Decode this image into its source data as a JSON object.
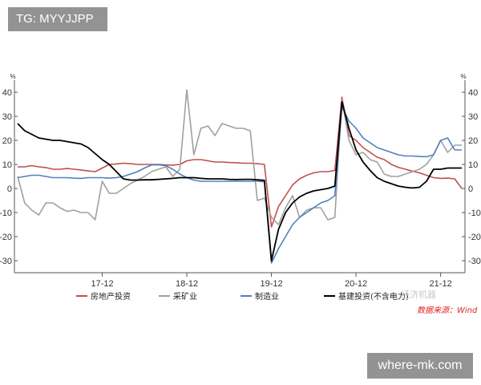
{
  "overlays": {
    "tg_label": "TG: MYYJJPP",
    "site_label": "where-mk.com",
    "brand_mark": "经济机器",
    "source_note": "数据来源：Wind"
  },
  "chart_data": {
    "type": "line",
    "title": "",
    "xlabel": "",
    "ylabel_left": "%",
    "ylabel_right": "%",
    "ylim": [
      -35,
      45
    ],
    "yticks": [
      40,
      30,
      20,
      10,
      0,
      -10,
      -20,
      -30
    ],
    "x_ticks": [
      {
        "label": "17-12",
        "index": 12
      },
      {
        "label": "18-12",
        "index": 24
      },
      {
        "label": "19-12",
        "index": 36
      },
      {
        "label": "20-12",
        "index": 48
      },
      {
        "label": "21-12",
        "index": 60
      }
    ],
    "x_count": 64,
    "grid": false,
    "legend_position": "bottom",
    "series": [
      {
        "name": "房地产投资",
        "color": "#c0504d",
        "values": [
          9,
          9,
          9.5,
          9,
          8.7,
          8,
          8,
          8.3,
          8,
          7.7,
          7.3,
          7,
          8.5,
          10,
          10.2,
          10.5,
          10.3,
          10,
          10,
          10,
          10,
          9.8,
          9.7,
          10,
          11.5,
          12,
          12,
          11.5,
          11,
          11,
          10.8,
          10.7,
          10.5,
          10.5,
          10.3,
          10,
          -16,
          -7.5,
          -3,
          1.5,
          4,
          5.5,
          6.5,
          7,
          7,
          7.5,
          38,
          22,
          20,
          17,
          15,
          13,
          12,
          10,
          8.8,
          8,
          7.2,
          6.5,
          5.5,
          4.5,
          4.2,
          4.3,
          4,
          0
        ]
      },
      {
        "name": "采矿业",
        "color": "#a0a0a0",
        "values": [
          5,
          -6,
          -9,
          -11,
          -6,
          -6,
          -8,
          -9.5,
          -9,
          -10,
          -10,
          -13,
          3,
          -2,
          -2,
          0,
          2,
          3.5,
          5,
          7,
          8,
          9,
          5,
          8,
          41,
          14,
          25,
          26,
          22,
          27,
          26,
          25,
          25,
          24,
          -5,
          -4,
          -12,
          -15,
          -8,
          -3,
          -12,
          -9,
          -8,
          -8,
          -13,
          -12,
          37,
          20,
          14,
          15,
          12,
          11,
          6,
          5,
          5,
          6,
          7,
          8,
          10,
          14,
          20,
          15,
          18,
          18
        ]
      },
      {
        "name": "制造业",
        "color": "#4f81bd",
        "values": [
          4.5,
          5,
          5.5,
          5.5,
          5,
          4.5,
          4.5,
          4.5,
          4.3,
          4.2,
          4.5,
          4.5,
          4.5,
          4.3,
          4.5,
          5,
          6,
          7,
          8.5,
          9.8,
          9.8,
          9.5,
          8,
          6,
          4.5,
          3.5,
          3,
          3,
          3,
          3,
          3,
          3,
          3,
          3,
          3,
          2.8,
          -31,
          -25,
          -20,
          -15,
          -12,
          -10,
          -8,
          -6,
          -5,
          -3,
          34,
          28,
          25,
          21,
          19,
          17,
          16,
          15,
          14,
          13.5,
          13.5,
          13.3,
          13.2,
          14,
          20,
          21,
          16,
          16
        ]
      },
      {
        "name": "基建投资(不含电力)",
        "color": "#000000",
        "values": [
          27,
          24,
          22.5,
          21,
          20.5,
          20,
          20,
          19.5,
          19,
          18.5,
          17,
          14.5,
          12,
          10,
          7,
          4,
          3.5,
          3.5,
          3.6,
          3.6,
          3.8,
          4,
          4.2,
          4.5,
          4.5,
          4.5,
          4.2,
          4,
          4,
          4,
          3.8,
          3.7,
          3.8,
          3.8,
          3.6,
          3.4,
          -30,
          -17,
          -10,
          -6,
          -3.5,
          -2,
          -1,
          -0.5,
          0,
          1,
          36,
          25,
          16,
          11,
          7.5,
          4.5,
          3,
          2,
          1,
          0.5,
          0.2,
          0.5,
          3,
          8,
          8,
          8.5,
          8.5,
          8.5
        ]
      }
    ]
  }
}
